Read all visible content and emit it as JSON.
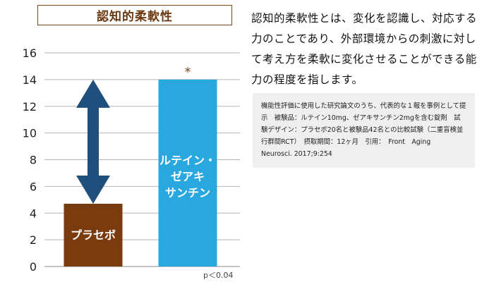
{
  "chart_data": {
    "type": "bar",
    "title": "認知的柔軟性",
    "categories": [
      "プラセボ",
      "ルテイン・ゼアキサンチン"
    ],
    "bar_label_lines": [
      [
        "プラセボ"
      ],
      [
        "ルテイン・",
        "ゼアキ",
        "サンチン"
      ]
    ],
    "values": [
      4.7,
      14.0
    ],
    "ylim": [
      0,
      16
    ],
    "yticks": [
      0,
      2,
      4,
      6,
      8,
      10,
      12,
      14,
      16
    ],
    "grid": true,
    "significance_marker": "*",
    "p_value_note": "p＜0.04",
    "colors": {
      "placebo": "#7a3c0e",
      "treatment": "#29a8e0",
      "arrow": "#1f4f7d",
      "title": "#6b3a12"
    }
  },
  "description": "認知的柔軟性とは、変化を認識し、対応する力のことであり、外部環境からの刺激に対して考え方を柔軟に変化させることができる能力の程度を指します。",
  "note": "機能性評価に使用した研究論文のうち、代表的な１報を事例として提示　被験品：ルテイン10mg、ゼアキサンチン2mgを含む錠剤　試験デザイン：プラセボ20名と被験品42名との比較試験（二重盲検並行群間RCT）　摂取期間：12ヶ月　引用：　Front　Aging　Neurosci. 2017;9:254"
}
